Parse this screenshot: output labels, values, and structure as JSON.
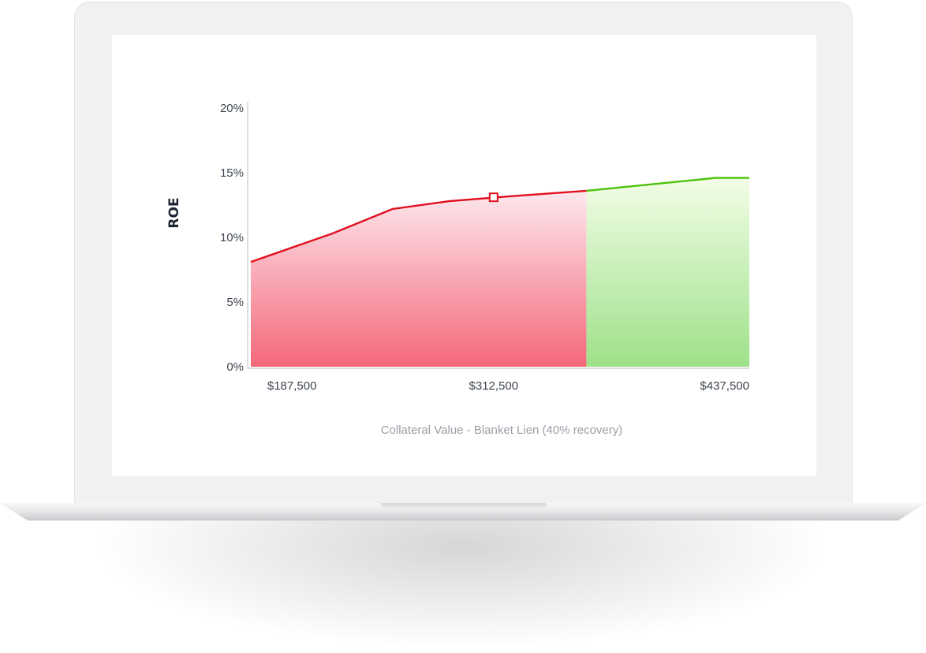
{
  "chart_data": {
    "type": "area",
    "ylabel": "ROE",
    "xlabel": "Collateral Value - Blanket Lien (40% recovery)",
    "x_tick_labels": [
      "$187,500",
      "$312,500",
      "$437,500"
    ],
    "x_tick_values": [
      187500,
      312500,
      437500
    ],
    "y_tick_labels": [
      "0%",
      "5%",
      "10%",
      "15%",
      "20%"
    ],
    "y_tick_values": [
      0,
      5,
      10,
      15,
      20
    ],
    "xlim": [
      162000,
      471000
    ],
    "ylim": [
      0,
      20
    ],
    "grid": false,
    "threshold_x": 370000,
    "series": [
      {
        "color": "#e0101f",
        "x": [
          162000,
          212500,
          250000,
          285000,
          325000,
          370000
        ],
        "y": [
          8.1,
          10.3,
          12.2,
          12.8,
          13.2,
          13.6
        ]
      },
      {
        "color": "#4cc20a",
        "x": [
          370000,
          450000,
          471000
        ],
        "y": [
          13.6,
          14.6,
          14.6
        ]
      }
    ],
    "marker": {
      "x": 312500,
      "y": 13.1,
      "color": "#e0101f"
    },
    "colors": {
      "red_fill_top": "#fde8ee",
      "red_fill_bottom": "#f4687a",
      "green_fill_top": "#f2fde6",
      "green_fill_bottom": "#9ee18a",
      "axis": "#dedede"
    }
  }
}
